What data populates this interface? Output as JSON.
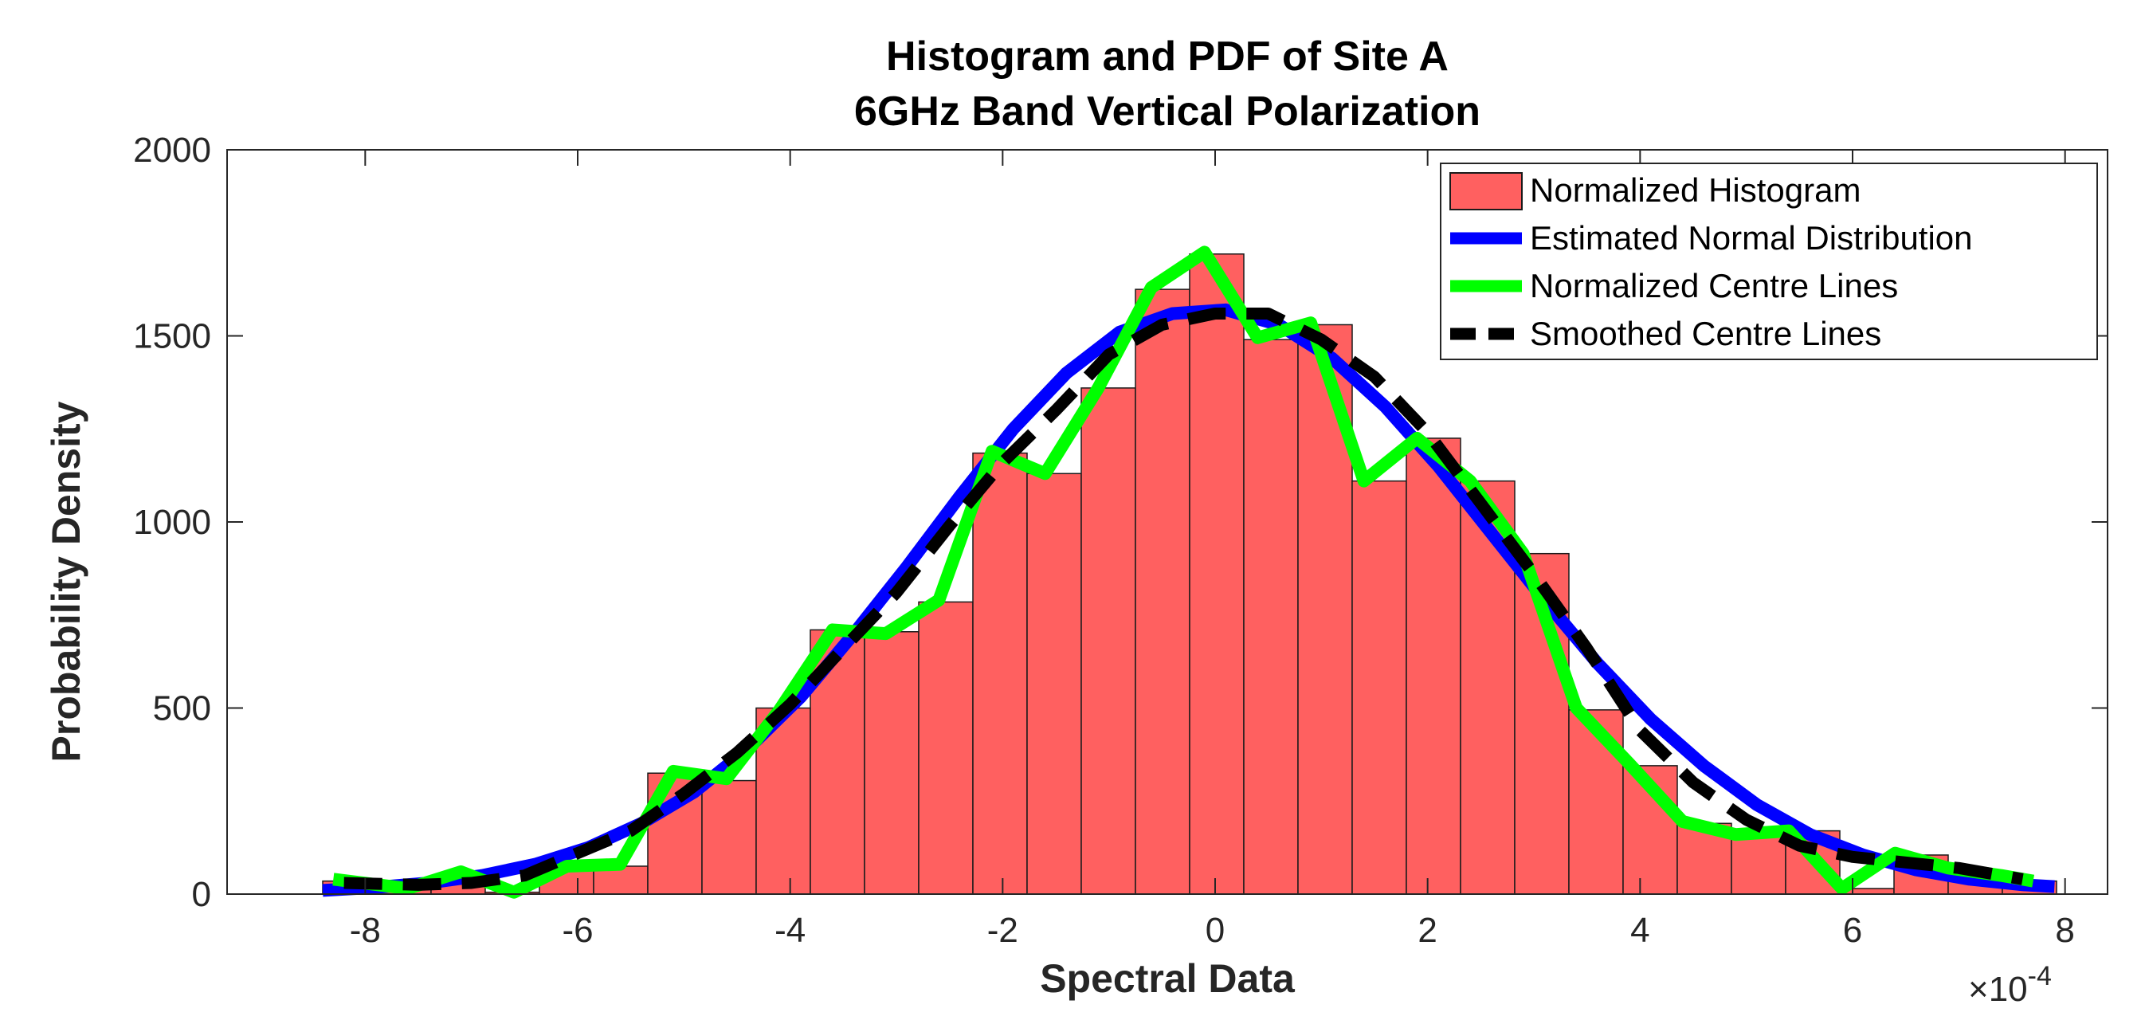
{
  "chart_data": {
    "type": "bar",
    "title": [
      "Histogram and PDF of Site A",
      "6GHz Band Vertical Polarization"
    ],
    "xlabel": "Spectral Data",
    "ylabel": "Probability Density",
    "x_exponent_label": "×10",
    "x_exponent_power": "-4",
    "xlim": [
      -9.3,
      8.4
    ],
    "ylim": [
      0,
      2000
    ],
    "xticks": [
      -8,
      -6,
      -4,
      -2,
      0,
      2,
      4,
      6,
      8
    ],
    "xtick_labels": [
      "-8",
      "-6",
      "-4",
      "-2",
      "0",
      "2",
      "4",
      "6",
      "8"
    ],
    "yticks": [
      0,
      500,
      1000,
      1500,
      2000
    ],
    "ytick_labels": [
      "0",
      "500",
      "1000",
      "1500",
      "2000"
    ],
    "grid": false,
    "legend_position": "top-right",
    "histogram": {
      "name": "Normalized Histogram",
      "color": "#ff6060",
      "bin_edges": [
        -8.4,
        -7.89,
        -7.38,
        -6.87,
        -6.36,
        -5.85,
        -5.34,
        -4.83,
        -4.32,
        -3.81,
        -3.3,
        -2.79,
        -2.28,
        -1.77,
        -1.26,
        -0.75,
        -0.24,
        0.27,
        0.78,
        1.29,
        1.8,
        2.31,
        2.82,
        3.33,
        3.84,
        4.35,
        4.86,
        5.37,
        5.88,
        6.39,
        6.9,
        7.41,
        7.92
      ],
      "values": [
        35,
        25,
        30,
        5,
        70,
        75,
        325,
        305,
        500,
        710,
        705,
        785,
        1185,
        1130,
        1360,
        1625,
        1720,
        1490,
        1530,
        1110,
        1225,
        1110,
        915,
        495,
        345,
        190,
        170,
        170,
        15,
        105,
        40,
        35
      ]
    },
    "series": [
      {
        "name": "Estimated Normal Distribution",
        "color": "#0000ff",
        "style": "solid",
        "x": [
          -8.4,
          -7.9,
          -7.4,
          -6.9,
          -6.4,
          -5.9,
          -5.4,
          -4.9,
          -4.4,
          -3.9,
          -3.4,
          -2.9,
          -2.4,
          -1.9,
          -1.4,
          -0.9,
          -0.4,
          0.1,
          0.6,
          1.1,
          1.6,
          2.1,
          2.6,
          3.1,
          3.6,
          4.1,
          4.6,
          5.1,
          5.6,
          6.1,
          6.6,
          7.1,
          7.6,
          7.9
        ],
        "values": [
          10,
          18,
          30,
          50,
          80,
          125,
          190,
          275,
          390,
          530,
          700,
          880,
          1070,
          1250,
          1400,
          1510,
          1560,
          1570,
          1530,
          1440,
          1310,
          1150,
          970,
          790,
          620,
          470,
          345,
          240,
          160,
          105,
          65,
          40,
          25,
          20
        ]
      },
      {
        "name": "Normalized Centre Lines",
        "color": "#00ff00",
        "style": "solid",
        "x": [
          -8.3,
          -7.6,
          -7.1,
          -6.6,
          -6.1,
          -5.6,
          -5.1,
          -4.6,
          -4.1,
          -3.6,
          -3.1,
          -2.6,
          -2.1,
          -1.6,
          -1.1,
          -0.6,
          -0.1,
          0.4,
          0.9,
          1.4,
          1.9,
          2.4,
          2.9,
          3.4,
          3.9,
          4.4,
          4.9,
          5.4,
          5.9,
          6.4,
          6.9,
          7.4,
          7.7
        ],
        "values": [
          40,
          15,
          60,
          5,
          75,
          80,
          330,
          310,
          495,
          710,
          700,
          790,
          1190,
          1130,
          1360,
          1630,
          1725,
          1495,
          1535,
          1110,
          1225,
          1110,
          915,
          500,
          350,
          195,
          160,
          170,
          15,
          110,
          70,
          50,
          35
        ]
      },
      {
        "name": "Smoothed Centre Lines",
        "color": "#000000",
        "style": "dashed",
        "x": [
          -8.2,
          -7.5,
          -7.0,
          -6.5,
          -6.0,
          -5.5,
          -5.0,
          -4.5,
          -4.0,
          -3.5,
          -3.0,
          -2.5,
          -2.0,
          -1.5,
          -1.0,
          -0.5,
          0.0,
          0.5,
          1.0,
          1.5,
          2.0,
          2.5,
          3.0,
          3.5,
          4.0,
          4.5,
          5.0,
          5.5,
          6.0,
          6.5,
          7.0,
          7.6
        ],
        "values": [
          30,
          25,
          30,
          50,
          110,
          170,
          270,
          380,
          510,
          660,
          810,
          990,
          1160,
          1300,
          1450,
          1530,
          1560,
          1560,
          1490,
          1390,
          1240,
          1050,
          860,
          660,
          440,
          300,
          200,
          130,
          100,
          85,
          70,
          40
        ]
      }
    ]
  }
}
